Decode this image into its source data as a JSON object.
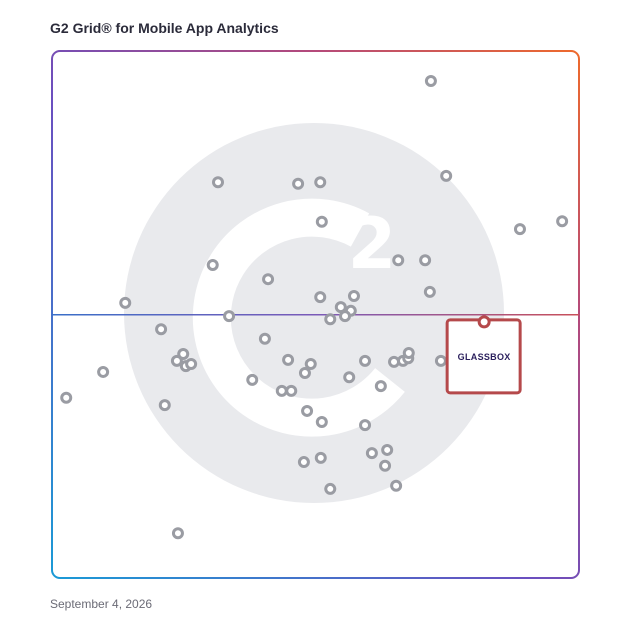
{
  "chart_data": {
    "type": "scatter",
    "title": "G2 Grid® for Mobile App Analytics",
    "footnote": "September 4, 2026",
    "xlim": [
      0,
      100
    ],
    "ylim": [
      0,
      100
    ],
    "x": [
      71.9,
      74.8,
      88.8,
      96.8,
      31.5,
      46.7,
      50.9,
      51.2,
      30.5,
      41.0,
      65.7,
      70.8,
      71.7,
      13.9,
      50.9,
      57.3,
      54.8,
      56.7,
      55.6,
      52.8,
      33.6,
      20.7,
      40.4,
      24.9,
      23.7,
      25.4,
      26.4,
      9.7,
      2.7,
      21.4,
      38.0,
      44.8,
      49.1,
      48.0,
      43.6,
      45.4,
      59.4,
      56.4,
      62.4,
      64.9,
      66.6,
      67.6,
      67.7,
      73.8,
      48.4,
      51.2,
      59.4,
      63.6,
      60.7,
      63.2,
      51.0,
      47.8,
      52.8,
      65.3,
      23.9
    ],
    "y": [
      94.3,
      76.3,
      66.2,
      67.7,
      75.1,
      74.8,
      75.1,
      67.6,
      59.4,
      56.7,
      60.3,
      60.3,
      54.3,
      52.2,
      53.3,
      53.5,
      51.4,
      50.7,
      49.7,
      49.1,
      49.7,
      47.2,
      45.4,
      42.5,
      41.2,
      40.2,
      40.6,
      39.1,
      34.2,
      32.8,
      37.6,
      41.4,
      40.6,
      38.9,
      35.5,
      35.5,
      41.2,
      38.1,
      36.4,
      41.0,
      41.2,
      41.7,
      42.7,
      41.2,
      31.7,
      29.6,
      29.0,
      24.3,
      23.7,
      21.3,
      22.8,
      22.0,
      16.9,
      17.5,
      8.5
    ],
    "point_color": "#9a9ca3",
    "highlight": {
      "label": "GLASSBOX",
      "x": 82.0,
      "y": 48.6,
      "color": "#b5494b"
    }
  }
}
